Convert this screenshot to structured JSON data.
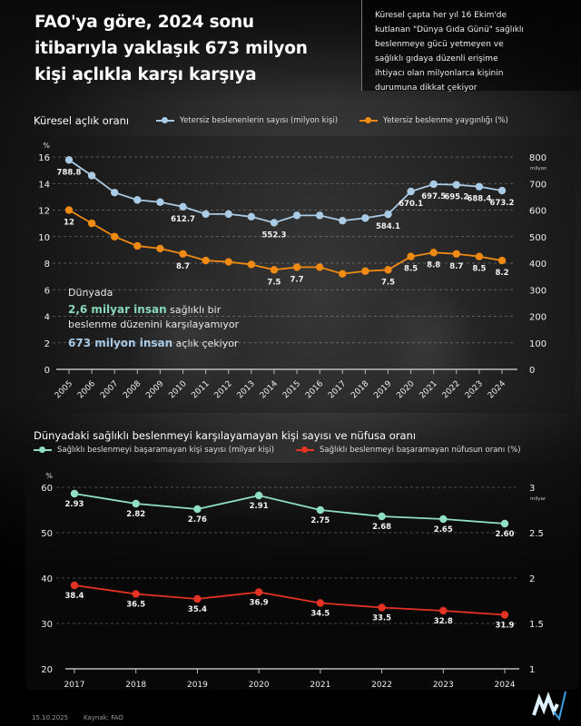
{
  "header": {
    "title_lines": [
      "FAO'ya göre, 2024 sonu",
      "itibarıyla yaklaşık 673 milyon",
      "kişi açlıkla karşı karşıya"
    ],
    "info_lines": [
      "Küresel çapta her yıl 16 Ekim'de",
      "kutlanan \"Dünya Gıda Günü\" sağlıklı",
      "beslenmeye gücü yetmeyen ve",
      "sağlıklı gıdaya düzenli erişime",
      "ihtiyacı olan milyonlarca kişinin",
      "durumuna dikkat çekiyor"
    ]
  },
  "note": {
    "intro": "Dünyada",
    "line1_highlight": "2,6 milyar insan",
    "line1_rest": " sağlıklı bir",
    "line2": "beslenme düzenini karşılayamıyor",
    "line3_highlight": "673 milyon insan",
    "line3_rest": " açlık çekiyor"
  },
  "footer": {
    "date": "15.10.2025",
    "source": "Kaynak: FAO"
  },
  "colors": {
    "blue": "#a9cbe6",
    "orange": "#f08a12",
    "green": "#8fe0c2",
    "red": "#e53222"
  },
  "chart_data": [
    {
      "type": "line",
      "title": "Küresel açlık oranı",
      "x": [
        "2005",
        "2006",
        "2007",
        "2008",
        "2009",
        "2010",
        "2011",
        "2012",
        "2013",
        "2014",
        "2015",
        "2016",
        "2017",
        "2018",
        "2019",
        "2020",
        "2021",
        "2022",
        "2023",
        "2024"
      ],
      "left_axis": {
        "unit": "%",
        "ylim": [
          0,
          16
        ],
        "ticks": [
          "0",
          "2",
          "4",
          "6",
          "8",
          "10",
          "12",
          "14",
          "16"
        ]
      },
      "right_axis": {
        "unit": "milyon",
        "ylim": [
          0,
          800
        ],
        "ticks": [
          "0",
          "100",
          "200",
          "300",
          "400",
          "500",
          "600",
          "700",
          "800"
        ]
      },
      "grid": true,
      "legend": "top",
      "series": [
        {
          "name": "Yetersiz beslenenlerin sayısı (milyon kişi)",
          "axis": "right",
          "color": "#a9cbe6",
          "values": [
            788.8,
            730,
            666,
            638,
            630,
            612.7,
            585,
            585,
            575,
            552.3,
            580,
            580,
            560,
            570,
            584.1,
            670.1,
            697.5,
            695.2,
            688.4,
            673.2
          ],
          "labels": [
            "788.8",
            "",
            "",
            "",
            "",
            "612.7",
            "",
            "",
            "",
            "552.3",
            "",
            "",
            "",
            "",
            "584.1",
            "670.1",
            "697.5",
            "695.2",
            "688.4",
            "673.2"
          ]
        },
        {
          "name": "Yetersiz beslenme yaygınlığı (%)",
          "axis": "left",
          "color": "#f08a12",
          "values": [
            12,
            11,
            10,
            9.3,
            9.1,
            8.7,
            8.2,
            8.1,
            7.9,
            7.5,
            7.7,
            7.7,
            7.2,
            7.4,
            7.5,
            8.5,
            8.8,
            8.7,
            8.5,
            8.2
          ],
          "labels": [
            "12",
            "",
            "",
            "",
            "",
            "8.7",
            "",
            "",
            "",
            "7.5",
            "7.7",
            "",
            "",
            "",
            "7.5",
            "8.5",
            "8.8",
            "8.7",
            "8.5",
            "8.2"
          ]
        }
      ]
    },
    {
      "type": "line",
      "title": "Dünyadaki sağlıklı beslenmeyi karşılayamayan kişi sayısı ve nüfusa oranı",
      "x": [
        "2017",
        "2018",
        "2019",
        "2020",
        "2021",
        "2022",
        "2023",
        "2024"
      ],
      "left_axis": {
        "unit": "%",
        "ylim": [
          20,
          60
        ],
        "ticks": [
          "20",
          "30",
          "40",
          "50",
          "60"
        ]
      },
      "right_axis": {
        "unit": "milyar",
        "ylim": [
          1,
          3
        ],
        "ticks": [
          "1",
          "1.5",
          "2",
          "2.5",
          "3"
        ]
      },
      "grid": true,
      "legend": "top",
      "series": [
        {
          "name": "Sağlıklı beslenmeyi başaramayan kişi sayısı (milyar kişi)",
          "axis": "right",
          "color": "#8fe0c2",
          "values": [
            2.93,
            2.82,
            2.76,
            2.91,
            2.75,
            2.68,
            2.65,
            2.6
          ],
          "labels": [
            "2.93",
            "2.82",
            "2.76",
            "2.91",
            "2.75",
            "2.68",
            "2.65",
            "2.60"
          ]
        },
        {
          "name": "Sağlıklı beslenmeyi başaramayan nüfusun oranı (%)",
          "axis": "left",
          "color": "#e53222",
          "values": [
            38.4,
            36.5,
            35.4,
            36.9,
            34.5,
            33.5,
            32.8,
            31.9
          ],
          "labels": [
            "38.4",
            "36.5",
            "35.4",
            "36.9",
            "34.5",
            "33.5",
            "32.8",
            "31.9"
          ]
        }
      ]
    }
  ]
}
